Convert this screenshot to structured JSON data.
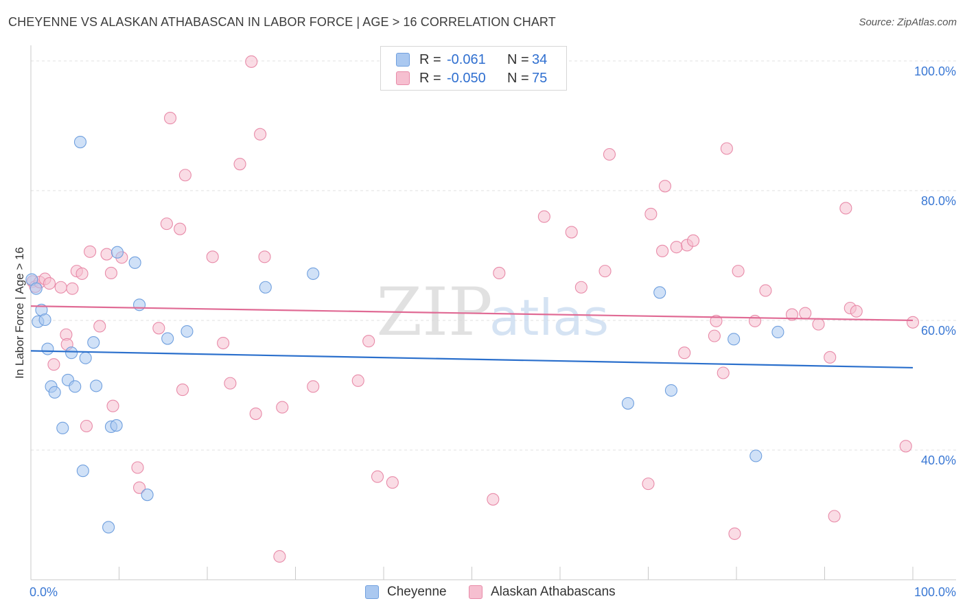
{
  "title": "CHEYENNE VS ALASKAN ATHABASCAN IN LABOR FORCE | AGE > 16 CORRELATION CHART",
  "source": "Source: ZipAtlas.com",
  "watermark": {
    "zip": "ZIP",
    "atlas": "atlas"
  },
  "legend_top": {
    "rows": [
      {
        "r_label": "R =",
        "r_value": "-0.061",
        "n_label": "N =",
        "n_value": "34"
      },
      {
        "r_label": "R =",
        "r_value": "-0.050",
        "n_label": "N =",
        "n_value": "75"
      }
    ]
  },
  "legend_bottom": {
    "items": [
      "Cheyenne",
      "Alaskan Athabascans"
    ]
  },
  "colors": {
    "cheyenne_fill": "#aac8f0",
    "cheyenne_stroke": "#6f9fde",
    "cheyenne_line": "#2a6fcc",
    "alaskan_fill": "#f6bfd0",
    "alaskan_stroke": "#e88aa8",
    "alaskan_line": "#e06a94",
    "tick_label": "#3a78d4",
    "grid": "#e1e1e1",
    "axis": "#c8c8c8"
  },
  "chart_data": {
    "type": "scatter",
    "title": "CHEYENNE VS ALASKAN ATHABASCAN IN LABOR FORCE | AGE > 16 CORRELATION CHART",
    "xlabel": "",
    "ylabel": "In Labor Force | Age > 16",
    "xlim": [
      0,
      100
    ],
    "ylim": [
      20,
      102
    ],
    "x_tick_labels": [
      "0.0%",
      "100.0%"
    ],
    "y_ticks": [
      40,
      60,
      80,
      100
    ],
    "y_tick_labels": [
      "40.0%",
      "60.0%",
      "80.0%",
      "100.0%"
    ],
    "grid": true,
    "legend_position": "top-center",
    "series": [
      {
        "name": "Cheyenne",
        "r": -0.061,
        "n": 34,
        "trend": {
          "x": [
            0,
            100
          ],
          "y": [
            55.3,
            52.7
          ]
        },
        "points": [
          {
            "x": 0.1,
            "y": 66.3
          },
          {
            "x": 0.6,
            "y": 64.9
          },
          {
            "x": 0.8,
            "y": 59.8
          },
          {
            "x": 1.2,
            "y": 61.6
          },
          {
            "x": 1.6,
            "y": 60.1
          },
          {
            "x": 1.9,
            "y": 55.6
          },
          {
            "x": 2.3,
            "y": 49.8
          },
          {
            "x": 2.7,
            "y": 48.9
          },
          {
            "x": 3.6,
            "y": 43.4
          },
          {
            "x": 4.2,
            "y": 50.8
          },
          {
            "x": 4.6,
            "y": 55.0
          },
          {
            "x": 5.0,
            "y": 49.8
          },
          {
            "x": 5.6,
            "y": 87.5
          },
          {
            "x": 5.9,
            "y": 36.8
          },
          {
            "x": 6.2,
            "y": 54.2
          },
          {
            "x": 7.1,
            "y": 56.6
          },
          {
            "x": 7.4,
            "y": 49.9
          },
          {
            "x": 8.8,
            "y": 28.1
          },
          {
            "x": 9.1,
            "y": 43.6
          },
          {
            "x": 9.7,
            "y": 43.8
          },
          {
            "x": 9.8,
            "y": 70.5
          },
          {
            "x": 11.8,
            "y": 68.9
          },
          {
            "x": 12.3,
            "y": 62.4
          },
          {
            "x": 13.2,
            "y": 33.1
          },
          {
            "x": 15.5,
            "y": 57.2
          },
          {
            "x": 17.7,
            "y": 58.3
          },
          {
            "x": 26.6,
            "y": 65.1
          },
          {
            "x": 32.0,
            "y": 67.2
          },
          {
            "x": 67.7,
            "y": 47.2
          },
          {
            "x": 71.3,
            "y": 64.3
          },
          {
            "x": 72.6,
            "y": 49.2
          },
          {
            "x": 79.7,
            "y": 57.1
          },
          {
            "x": 82.2,
            "y": 39.1
          },
          {
            "x": 84.7,
            "y": 58.2
          }
        ]
      },
      {
        "name": "Alaskan Athabascans",
        "r": -0.05,
        "n": 75,
        "trend": {
          "x": [
            0,
            100
          ],
          "y": [
            62.2,
            60.0
          ]
        },
        "points": [
          {
            "x": 0.2,
            "y": 66.0
          },
          {
            "x": 0.5,
            "y": 65.2
          },
          {
            "x": 1.0,
            "y": 65.9
          },
          {
            "x": 1.6,
            "y": 66.4
          },
          {
            "x": 2.1,
            "y": 65.7
          },
          {
            "x": 2.6,
            "y": 53.2
          },
          {
            "x": 3.4,
            "y": 65.1
          },
          {
            "x": 4.0,
            "y": 57.8
          },
          {
            "x": 4.1,
            "y": 56.3
          },
          {
            "x": 4.7,
            "y": 64.9
          },
          {
            "x": 5.2,
            "y": 67.6
          },
          {
            "x": 5.8,
            "y": 67.2
          },
          {
            "x": 6.3,
            "y": 43.7
          },
          {
            "x": 6.7,
            "y": 70.6
          },
          {
            "x": 7.8,
            "y": 59.1
          },
          {
            "x": 8.6,
            "y": 70.2
          },
          {
            "x": 9.1,
            "y": 67.3
          },
          {
            "x": 9.3,
            "y": 46.8
          },
          {
            "x": 10.3,
            "y": 69.7
          },
          {
            "x": 12.1,
            "y": 37.3
          },
          {
            "x": 12.3,
            "y": 34.2
          },
          {
            "x": 14.5,
            "y": 58.8
          },
          {
            "x": 15.4,
            "y": 74.9
          },
          {
            "x": 15.8,
            "y": 91.2
          },
          {
            "x": 16.9,
            "y": 74.1
          },
          {
            "x": 17.2,
            "y": 49.3
          },
          {
            "x": 17.5,
            "y": 82.4
          },
          {
            "x": 20.6,
            "y": 69.8
          },
          {
            "x": 21.8,
            "y": 56.5
          },
          {
            "x": 22.6,
            "y": 50.3
          },
          {
            "x": 23.7,
            "y": 84.1
          },
          {
            "x": 25.0,
            "y": 99.9
          },
          {
            "x": 25.5,
            "y": 45.6
          },
          {
            "x": 26.0,
            "y": 88.7
          },
          {
            "x": 26.5,
            "y": 69.8
          },
          {
            "x": 28.2,
            "y": 23.6
          },
          {
            "x": 28.5,
            "y": 46.6
          },
          {
            "x": 32.0,
            "y": 49.8
          },
          {
            "x": 37.1,
            "y": 50.7
          },
          {
            "x": 38.3,
            "y": 56.8
          },
          {
            "x": 39.3,
            "y": 35.9
          },
          {
            "x": 41.0,
            "y": 35.0
          },
          {
            "x": 52.4,
            "y": 32.4
          },
          {
            "x": 53.1,
            "y": 67.3
          },
          {
            "x": 58.2,
            "y": 76.0
          },
          {
            "x": 61.3,
            "y": 73.6
          },
          {
            "x": 62.4,
            "y": 65.1
          },
          {
            "x": 65.1,
            "y": 67.6
          },
          {
            "x": 65.6,
            "y": 85.6
          },
          {
            "x": 70.0,
            "y": 34.8
          },
          {
            "x": 70.3,
            "y": 76.4
          },
          {
            "x": 71.6,
            "y": 70.7
          },
          {
            "x": 71.9,
            "y": 80.7
          },
          {
            "x": 73.2,
            "y": 71.3
          },
          {
            "x": 74.1,
            "y": 55.0
          },
          {
            "x": 74.4,
            "y": 71.6
          },
          {
            "x": 75.1,
            "y": 72.3
          },
          {
            "x": 77.5,
            "y": 57.6
          },
          {
            "x": 77.7,
            "y": 59.9
          },
          {
            "x": 78.5,
            "y": 51.9
          },
          {
            "x": 78.9,
            "y": 86.5
          },
          {
            "x": 79.8,
            "y": 27.1
          },
          {
            "x": 80.2,
            "y": 67.6
          },
          {
            "x": 82.1,
            "y": 59.9
          },
          {
            "x": 83.3,
            "y": 64.6
          },
          {
            "x": 86.3,
            "y": 60.9
          },
          {
            "x": 87.8,
            "y": 61.1
          },
          {
            "x": 89.3,
            "y": 59.4
          },
          {
            "x": 90.6,
            "y": 54.3
          },
          {
            "x": 91.1,
            "y": 29.8
          },
          {
            "x": 92.4,
            "y": 77.3
          },
          {
            "x": 92.9,
            "y": 61.9
          },
          {
            "x": 93.6,
            "y": 61.4
          },
          {
            "x": 99.2,
            "y": 40.6
          },
          {
            "x": 100.0,
            "y": 59.7
          }
        ]
      }
    ]
  }
}
